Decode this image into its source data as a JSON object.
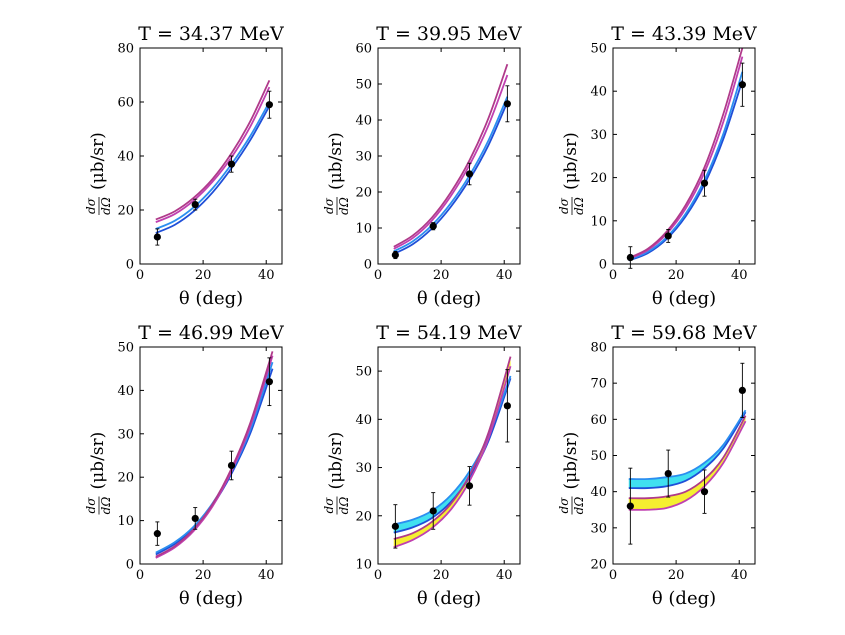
{
  "figure": {
    "ylabel_fraction_top": "dσ",
    "ylabel_fraction_bottom": "dΩ"
  },
  "chart_data": [
    {
      "type": "line",
      "title": "T = 34.37 MeV",
      "xlabel": "θ (deg)",
      "ylabel": "(μb/sr)",
      "xlim": [
        0,
        45
      ],
      "ylim": [
        0,
        80
      ],
      "xticks": [
        0,
        20,
        40
      ],
      "yticks": [
        0,
        20,
        40,
        60,
        80
      ],
      "data_points": [
        {
          "x": 5.5,
          "y": 10.0,
          "err": 3.0
        },
        {
          "x": 17.5,
          "y": 22.0,
          "err": 2.0
        },
        {
          "x": 29.0,
          "y": 37.0,
          "err": 3.0
        },
        {
          "x": 41.0,
          "y": 59.0,
          "err": 5.0
        }
      ],
      "series": [
        {
          "name": "blue-band-lower",
          "color": "#1f4fd8",
          "x": [
            5,
            11,
            17,
            23,
            29,
            35,
            41
          ],
          "y": [
            11.5,
            14.5,
            19.5,
            26.5,
            35.5,
            46.0,
            58.5
          ]
        },
        {
          "name": "blue-band-upper",
          "color": "#2b8ef0",
          "x": [
            5,
            11,
            17,
            23,
            29,
            35,
            41
          ],
          "y": [
            13.0,
            16.0,
            21.0,
            28.0,
            37.0,
            47.5,
            60.0
          ]
        },
        {
          "name": "magenta-band-lower",
          "color": "#c040b0",
          "x": [
            5,
            11,
            17,
            23,
            29,
            35,
            41
          ],
          "y": [
            15.5,
            18.5,
            23.5,
            30.5,
            39.5,
            51.0,
            65.5
          ]
        },
        {
          "name": "magenta-band-upper",
          "color": "#b03a8a",
          "x": [
            5,
            11,
            17,
            23,
            29,
            35,
            41
          ],
          "y": [
            16.5,
            19.5,
            24.5,
            31.5,
            41.0,
            53.0,
            68.0
          ]
        }
      ]
    },
    {
      "type": "line",
      "title": "T = 39.95 MeV",
      "xlabel": "θ (deg)",
      "ylabel": "(μb/sr)",
      "xlim": [
        0,
        45
      ],
      "ylim": [
        0,
        60
      ],
      "xticks": [
        0,
        20,
        40
      ],
      "yticks": [
        0,
        10,
        20,
        30,
        40,
        50,
        60
      ],
      "data_points": [
        {
          "x": 5.5,
          "y": 2.5,
          "err": 1.0
        },
        {
          "x": 17.5,
          "y": 10.5,
          "err": 1.0
        },
        {
          "x": 29.0,
          "y": 25.0,
          "err": 3.0
        },
        {
          "x": 41.0,
          "y": 44.5,
          "err": 5.0
        }
      ],
      "series": [
        {
          "name": "blue-band-lower",
          "color": "#1f4fd8",
          "x": [
            5,
            11,
            17,
            23,
            29,
            35,
            41
          ],
          "y": [
            2.8,
            5.5,
            9.8,
            15.8,
            23.5,
            33.0,
            45.0
          ]
        },
        {
          "name": "blue-band-upper",
          "color": "#2b8ef0",
          "x": [
            5,
            11,
            17,
            23,
            29,
            35,
            41
          ],
          "y": [
            3.5,
            6.3,
            10.7,
            16.8,
            24.6,
            34.3,
            46.5
          ]
        },
        {
          "name": "magenta-band-lower",
          "color": "#c040b0",
          "x": [
            5,
            11,
            17,
            23,
            29,
            35,
            41
          ],
          "y": [
            4.2,
            7.2,
            12.0,
            18.8,
            27.5,
            38.5,
            52.5
          ]
        },
        {
          "name": "magenta-band-upper",
          "color": "#b03a8a",
          "x": [
            5,
            11,
            17,
            23,
            29,
            35,
            41
          ],
          "y": [
            4.8,
            7.9,
            12.8,
            19.8,
            28.8,
            40.5,
            55.5
          ]
        }
      ]
    },
    {
      "type": "line",
      "title": "T = 43.39 MeV",
      "xlabel": "θ (deg)",
      "ylabel": "(μb/sr)",
      "xlim": [
        0,
        45
      ],
      "ylim": [
        0,
        50
      ],
      "xticks": [
        0,
        20,
        40
      ],
      "yticks": [
        0,
        10,
        20,
        30,
        40,
        50
      ],
      "data_points": [
        {
          "x": 5.5,
          "y": 1.5,
          "err": 2.5
        },
        {
          "x": 17.5,
          "y": 6.5,
          "err": 1.5
        },
        {
          "x": 29.0,
          "y": 18.7,
          "err": 3.0
        },
        {
          "x": 41.0,
          "y": 41.5,
          "err": 5.0
        }
      ],
      "series": [
        {
          "name": "blue-band-lower",
          "color": "#1f4fd8",
          "x": [
            5,
            11,
            17,
            23,
            29,
            35,
            41
          ],
          "y": [
            0.8,
            2.5,
            5.8,
            11.0,
            18.5,
            29.0,
            42.5
          ]
        },
        {
          "name": "blue-band-upper",
          "color": "#2b8ef0",
          "x": [
            5,
            11,
            17,
            23,
            29,
            35,
            41
          ],
          "y": [
            1.0,
            2.8,
            6.2,
            11.6,
            19.4,
            30.2,
            44.5
          ]
        },
        {
          "name": "magenta-band-lower",
          "color": "#c040b0",
          "x": [
            5,
            11,
            17,
            23,
            29,
            35,
            41
          ],
          "y": [
            1.2,
            3.2,
            7.0,
            12.8,
            21.2,
            33.0,
            48.0
          ]
        },
        {
          "name": "magenta-band-upper",
          "color": "#b03a8a",
          "x": [
            5,
            11,
            17,
            23,
            29,
            35,
            41
          ],
          "y": [
            1.4,
            3.5,
            7.5,
            13.6,
            22.4,
            34.8,
            50.0
          ]
        }
      ]
    },
    {
      "type": "line",
      "title": "T = 46.99 MeV",
      "xlabel": "θ (deg)",
      "ylabel": "(μb/sr)",
      "xlim": [
        0,
        45
      ],
      "ylim": [
        0,
        50
      ],
      "xticks": [
        0,
        20,
        40
      ],
      "yticks": [
        0,
        10,
        20,
        30,
        40,
        50
      ],
      "data_points": [
        {
          "x": 5.5,
          "y": 7.0,
          "err": 2.7
        },
        {
          "x": 17.5,
          "y": 10.5,
          "err": 2.5
        },
        {
          "x": 29.0,
          "y": 22.7,
          "err": 3.3
        },
        {
          "x": 41.0,
          "y": 42.0,
          "err": 5.5
        }
      ],
      "series": [
        {
          "name": "blue-band-lower",
          "color": "#1f4fd8",
          "x": [
            5,
            11,
            17,
            23,
            29,
            35,
            42
          ],
          "y": [
            2.2,
            4.6,
            8.2,
            13.5,
            20.8,
            30.2,
            45.0
          ]
        },
        {
          "name": "blue-band-upper",
          "color": "#2b8ef0",
          "x": [
            5,
            11,
            17,
            23,
            29,
            35,
            42
          ],
          "y": [
            2.6,
            5.0,
            8.6,
            14.0,
            21.4,
            31.0,
            46.5
          ]
        },
        {
          "name": "magenta-band-lower",
          "color": "#c040b0",
          "x": [
            5,
            11,
            17,
            23,
            29,
            35,
            42
          ],
          "y": [
            1.4,
            3.8,
            7.6,
            13.3,
            21.4,
            31.8,
            48.0
          ]
        },
        {
          "name": "magenta-band-upper",
          "color": "#b03a8a",
          "x": [
            5,
            11,
            17,
            23,
            29,
            35,
            42
          ],
          "y": [
            1.7,
            4.1,
            8.0,
            13.8,
            22.0,
            32.6,
            49.0
          ]
        }
      ]
    },
    {
      "type": "line",
      "title": "T = 54.19 MeV",
      "xlabel": "θ (deg)",
      "ylabel": "(μb/sr)",
      "xlim": [
        0,
        45
      ],
      "ylim": [
        10,
        55
      ],
      "xticks": [
        0,
        20,
        40
      ],
      "yticks": [
        10,
        20,
        30,
        40,
        50
      ],
      "data_points": [
        {
          "x": 5.5,
          "y": 17.8,
          "err": 4.5
        },
        {
          "x": 17.5,
          "y": 21.0,
          "err": 3.8
        },
        {
          "x": 29.0,
          "y": 26.2,
          "err": 4.0
        },
        {
          "x": 41.0,
          "y": 42.8,
          "err": 7.5
        }
      ],
      "series": [
        {
          "name": "cyan-band-lower",
          "color": "#1f4fd8",
          "fill": "#40e0f0",
          "x": [
            5,
            11,
            17,
            23,
            29,
            35,
            42
          ],
          "y": [
            16.5,
            17.6,
            19.5,
            22.8,
            28.0,
            35.5,
            48.5
          ]
        },
        {
          "name": "cyan-band-upper",
          "color": "#2b8ef0",
          "x": [
            5,
            11,
            17,
            23,
            29,
            35,
            42
          ],
          "y": [
            18.2,
            19.2,
            21.0,
            24.2,
            29.2,
            36.5,
            49.0
          ]
        },
        {
          "name": "yellow-band-lower",
          "color": "#c040b0",
          "fill": "#f5ef30",
          "x": [
            5,
            11,
            17,
            23,
            29,
            35,
            42
          ],
          "y": [
            13.5,
            15.0,
            17.4,
            21.2,
            27.2,
            36.0,
            51.0
          ]
        },
        {
          "name": "yellow-band-upper",
          "color": "#b03a8a",
          "x": [
            5,
            11,
            17,
            23,
            29,
            35,
            42
          ],
          "y": [
            15.2,
            16.4,
            18.7,
            22.4,
            28.4,
            37.2,
            53.0
          ]
        }
      ]
    },
    {
      "type": "line",
      "title": "T = 59.68 MeV",
      "xlabel": "θ (deg)",
      "ylabel": "(μb/sr)",
      "xlim": [
        0,
        45
      ],
      "ylim": [
        20,
        80
      ],
      "xticks": [
        0,
        20,
        40
      ],
      "yticks": [
        20,
        30,
        40,
        50,
        60,
        70,
        80
      ],
      "data_points": [
        {
          "x": 5.5,
          "y": 36.0,
          "err": 10.5
        },
        {
          "x": 17.5,
          "y": 45.0,
          "err": 6.5
        },
        {
          "x": 29.0,
          "y": 40.0,
          "err": 6.0
        },
        {
          "x": 41.0,
          "y": 68.0,
          "err": 7.5
        }
      ],
      "series": [
        {
          "name": "cyan-band-lower",
          "color": "#1f4fd8",
          "fill": "#40e0f0",
          "x": [
            5,
            11,
            17,
            23,
            29,
            35,
            42
          ],
          "y": [
            41.0,
            41.0,
            41.5,
            43.0,
            46.5,
            52.0,
            62.0
          ]
        },
        {
          "name": "cyan-band-upper",
          "color": "#2b8ef0",
          "x": [
            5,
            11,
            17,
            23,
            29,
            35,
            42
          ],
          "y": [
            43.5,
            43.5,
            44.0,
            45.0,
            48.0,
            53.0,
            62.5
          ]
        },
        {
          "name": "yellow-band-lower",
          "color": "#c040b0",
          "fill": "#f5ef30",
          "x": [
            5,
            11,
            17,
            23,
            29,
            35,
            42
          ],
          "y": [
            35.0,
            35.0,
            35.5,
            37.5,
            41.5,
            48.0,
            59.5
          ]
        },
        {
          "name": "yellow-band-upper",
          "color": "#b03a8a",
          "x": [
            5,
            11,
            17,
            23,
            29,
            35,
            42
          ],
          "y": [
            38.2,
            38.2,
            38.7,
            40.0,
            43.5,
            49.5,
            61.0
          ]
        }
      ]
    }
  ]
}
